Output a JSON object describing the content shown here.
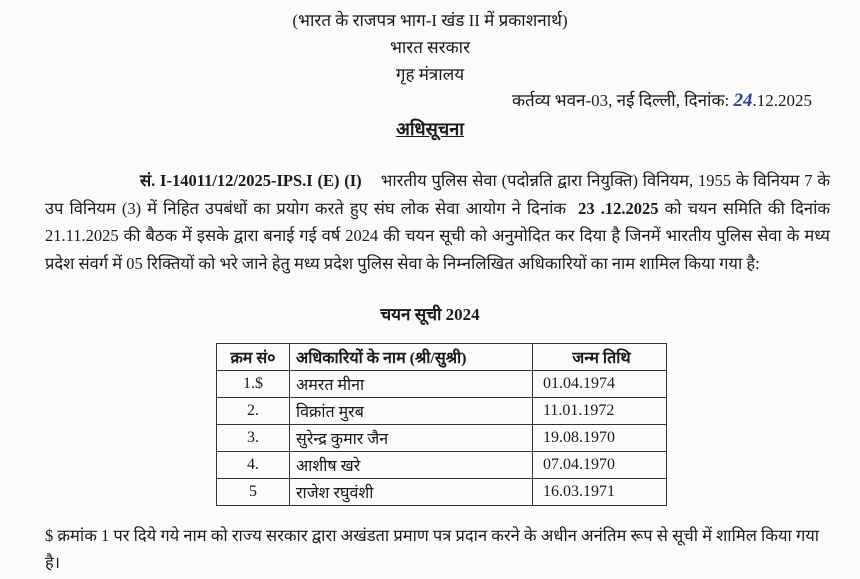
{
  "header": {
    "gazette_note": "(भारत के राजपत्र भाग-I खंड II में प्रकाशनार्थ)",
    "government": "भारत सरकार",
    "ministry": "गृह मंत्रालय",
    "place_date_prefix": "कर्तव्य भवन-03, नई दिल्ली, दिनांक:",
    "date_handwritten_day": "24",
    "date_rest": ".12.2025"
  },
  "title": "अधिसूचना",
  "body": {
    "ref_no": "सं. I-14011/12/2025-IPS.I (E) (I)",
    "text_part1": "भारतीय पुलिस सेवा (पदोन्नति द्वारा नियुक्ति) विनियम, 1955 के विनियम 7 के उप विनियम (3) में निहित उपबंधों का प्रयोग करते हुए संघ लोक सेवा आयोग ने दिनांक",
    "bold_date": "23 .12.2025",
    "text_part2": "को चयन समिति की दिनांक 21.11.2025 की बैठक में इसके द्वारा बनाई गई वर्ष 2024 की चयन सूची को अनुमोदित कर दिया है जिनमें भारतीय पुलिस सेवा के मध्य प्रदेश संवर्ग में 05 रिक्तियों को भरे जाने हेतु मध्य प्रदेश पुलिस सेवा के निम्नलिखित अधिकारियों का नाम शामिल किया गया है:"
  },
  "list_title": "चयन सूची 2024",
  "table": {
    "headers": [
      "क्रम सं०",
      "अधिकारियों के नाम  (श्री/सुश्री)",
      "जन्म तिथि"
    ],
    "rows": [
      [
        "1.$",
        "अमरत मीना",
        "01.04.1974"
      ],
      [
        "2.",
        "विक्रांत मुरब",
        "11.01.1972"
      ],
      [
        "3.",
        "सुरेन्द्र कुमार जैन",
        "19.08.1970"
      ],
      [
        "4.",
        "आशीष खरे",
        "07.04.1970"
      ],
      [
        "5",
        "राजेश रघुवंशी",
        "16.03.1971"
      ]
    ]
  },
  "footnote": "$ क्रमांक 1 पर दिये गये नाम को राज्य सरकार द्वारा अखंडता प्रमाण पत्र प्रदान करने के अधीन अनंतिम रूप से सूची में शामिल किया गया है।"
}
